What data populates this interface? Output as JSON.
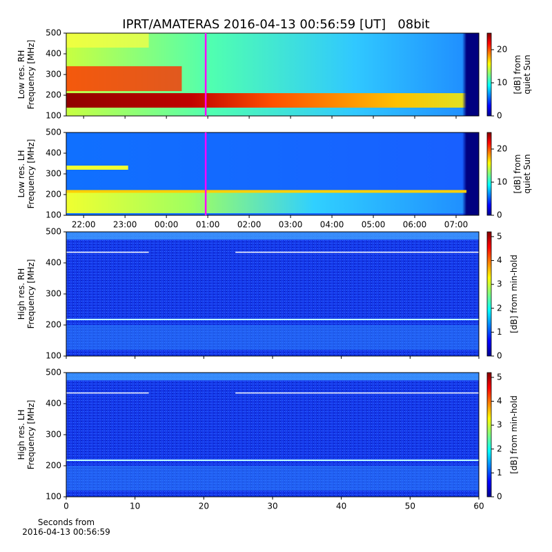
{
  "title": "IPRT/AMATERAS 2016-04-13 00:56:59 [UT]   08bit",
  "chart_data": [
    {
      "type": "spectrogram",
      "ylabel": [
        "Low res. RH",
        "Frequency [MHz]"
      ],
      "ylim": [
        100,
        500
      ],
      "yticks": [
        100,
        200,
        300,
        400,
        500
      ],
      "xlim": [
        21.58,
        31.55
      ],
      "xticks": [
        22,
        23,
        24,
        25,
        26,
        27,
        28,
        29,
        30,
        31
      ],
      "show_xtick_labels": false,
      "cursor_x": 24.95,
      "cursor_color": "#ff00ff",
      "style": "low-rh",
      "colorbar": {
        "label": [
          "[dB] from",
          "quiet Sun"
        ],
        "lim": [
          0,
          25
        ],
        "ticks": [
          0,
          10,
          20
        ]
      }
    },
    {
      "type": "spectrogram",
      "ylabel": [
        "Low res. LH",
        "Frequency [MHz]"
      ],
      "ylim": [
        100,
        500
      ],
      "yticks": [
        100,
        200,
        300,
        400,
        500
      ],
      "xlim": [
        21.58,
        31.55
      ],
      "xticks": [
        {
          "value": 22,
          "label": "22:00"
        },
        {
          "value": 23,
          "label": "23:00"
        },
        {
          "value": 24,
          "label": "00:00"
        },
        {
          "value": 25,
          "label": "01:00"
        },
        {
          "value": 26,
          "label": "02:00"
        },
        {
          "value": 27,
          "label": "03:00"
        },
        {
          "value": 28,
          "label": "04:00"
        },
        {
          "value": 29,
          "label": "05:00"
        },
        {
          "value": 30,
          "label": "06:00"
        },
        {
          "value": 31,
          "label": "07:00"
        }
      ],
      "show_xtick_labels": true,
      "cursor_x": 24.95,
      "cursor_color": "#ff00ff",
      "style": "low-lh",
      "colorbar": {
        "label": [
          "[dB] from",
          "quiet Sun"
        ],
        "lim": [
          0,
          25
        ],
        "ticks": [
          0,
          10,
          20
        ]
      }
    },
    {
      "type": "spectrogram",
      "ylabel": [
        "High res. RH",
        "Frequency [MHz]"
      ],
      "ylim": [
        100,
        500
      ],
      "yticks": [
        100,
        200,
        300,
        400,
        500
      ],
      "xlim": [
        0,
        60
      ],
      "xticks": [
        0,
        10,
        20,
        30,
        40,
        50,
        60
      ],
      "show_xtick_labels": false,
      "style": "high",
      "colorbar": {
        "label": [
          "[dB] from min-hold"
        ],
        "lim": [
          0,
          5.2
        ],
        "ticks": [
          0,
          1,
          2,
          3,
          4,
          5
        ]
      }
    },
    {
      "type": "spectrogram",
      "ylabel": [
        "High res. LH",
        "Frequency [MHz]"
      ],
      "ylim": [
        100,
        500
      ],
      "yticks": [
        100,
        200,
        300,
        400,
        500
      ],
      "xlim": [
        0,
        60
      ],
      "xticks": [
        0,
        10,
        20,
        30,
        40,
        50,
        60
      ],
      "show_xtick_labels": true,
      "style": "high",
      "xlabel": [
        "Seconds from",
        "2016-04-13 00:56:59"
      ],
      "colorbar": {
        "label": [
          "[dB] from min-hold"
        ],
        "lim": [
          0,
          5.2
        ],
        "ticks": [
          0,
          1,
          2,
          3,
          4,
          5
        ]
      }
    }
  ]
}
